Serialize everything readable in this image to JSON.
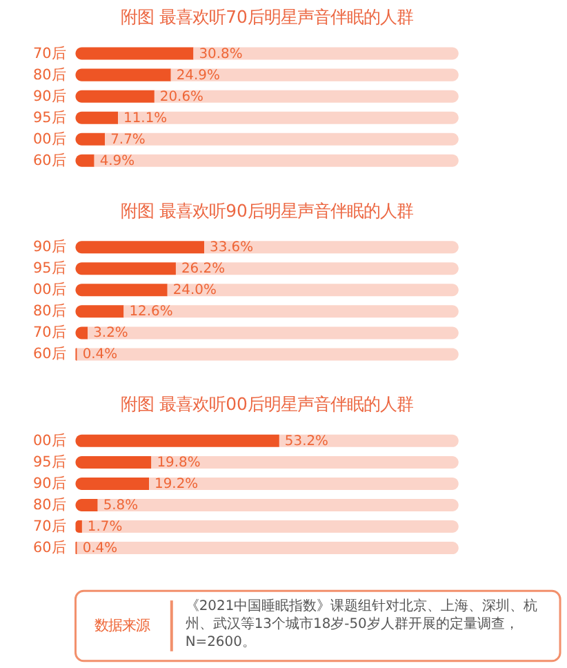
{
  "chart_data": [
    {
      "type": "bar",
      "orientation": "horizontal",
      "stacked": true,
      "title": "附图 最喜欢听70后明星声音伴眠的人群",
      "categories": [
        "70后",
        "80后",
        "90后",
        "95后",
        "00后",
        "60后"
      ],
      "tick_labels": "y",
      "series": [
        {
          "color": "#ee5525",
          "values": [
            30.8,
            24.9,
            20.6,
            11.1,
            7.7,
            4.9
          ],
          "value_labels": [
            "30.8%",
            "24.9%",
            "20.6%",
            "11.1%",
            "7.7%",
            "4.9%"
          ]
        },
        {
          "color": "#fbd4c9",
          "values": [
            69.2,
            75.1,
            79.4,
            88.9,
            92.3,
            95.1
          ]
        }
      ]
    },
    {
      "type": "bar",
      "orientation": "horizontal",
      "stacked": true,
      "title": "附图 最喜欢听90后明星声音伴眠的人群",
      "categories": [
        "90后",
        "95后",
        "00后",
        "80后",
        "70后",
        "60后"
      ],
      "tick_labels": "y",
      "series": [
        {
          "color": "#ee5525",
          "values": [
            33.6,
            26.2,
            24.0,
            12.6,
            3.2,
            0.4
          ],
          "value_labels": [
            "33.6%",
            "26.2%",
            "24.0%",
            "12.6%",
            "3.2%",
            "0.4%"
          ]
        },
        {
          "color": "#fbd4c9",
          "values": [
            66.4,
            73.8,
            76.0,
            87.4,
            96.8,
            99.6
          ]
        }
      ]
    },
    {
      "type": "bar",
      "orientation": "horizontal",
      "stacked": true,
      "title": "附图 最喜欢听00后明星声音伴眠的人群",
      "categories": [
        "00后",
        "95后",
        "90后",
        "80后",
        "70后",
        "60后"
      ],
      "tick_labels": "y",
      "series": [
        {
          "color": "#ee5525",
          "values": [
            53.2,
            19.8,
            19.2,
            5.8,
            1.7,
            0.4
          ],
          "value_labels": [
            "53.2%",
            "19.8%",
            "19.2%",
            "5.8%",
            "1.7%",
            "0.4%"
          ]
        },
        {
          "color": "#fbd4c9",
          "values": [
            46.8,
            80.2,
            80.8,
            94.2,
            98.3,
            99.6
          ]
        }
      ]
    },
    {
      "type": "other",
      "annotations": [
        "数据来源",
        "《2021中国睡眠指数》课题组针对北京、上海、深圳、杭州、武汉等13个城市18岁-50岁人群开展的定量调查，N=2600。"
      ]
    }
  ]
}
